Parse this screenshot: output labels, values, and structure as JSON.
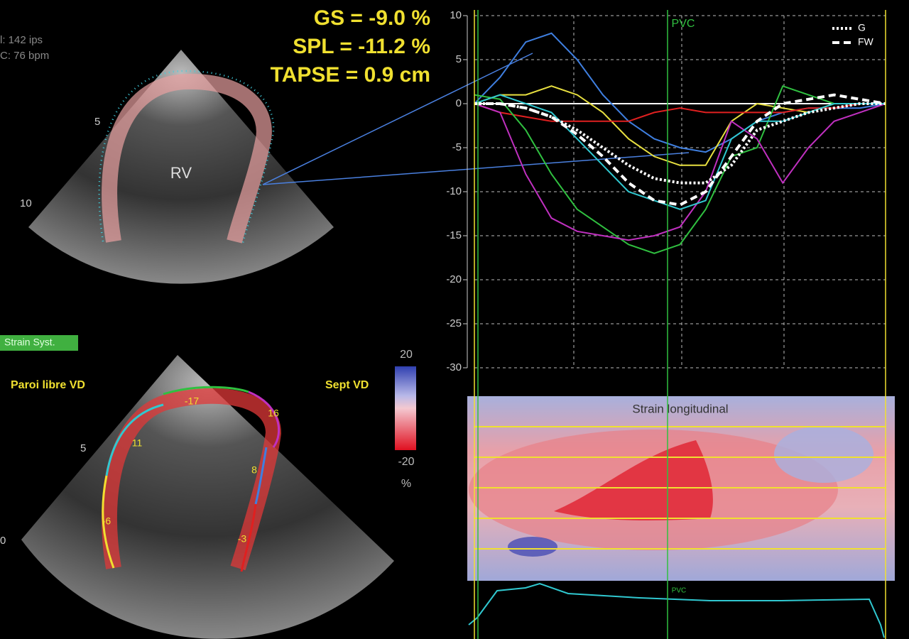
{
  "header": {
    "frame_rate": "l: 142 ips",
    "heart_rate": "C: 76 bpm"
  },
  "measurements": [
    "GS = -9.0 %",
    "SPL = -11.2 %",
    "TAPSE = 0.9 cm"
  ],
  "top_image": {
    "label": "RV",
    "depth_marks": [
      "5",
      "10"
    ]
  },
  "bottom_image": {
    "mode": "Strain Syst.",
    "left_wall": "Paroi libre VD",
    "right_wall": "Sept VD",
    "depth_marks": [
      "5",
      "0"
    ],
    "segments": [
      "-17",
      "16",
      "11",
      "8",
      "-6",
      "-3"
    ]
  },
  "colorbar": {
    "max": "20",
    "min": "-20",
    "unit": "%"
  },
  "heatmap": {
    "title": "Strain longitudinal",
    "marker": "PVC"
  },
  "chart_data": {
    "type": "line",
    "annotation": "PVC",
    "categories": [
      null,
      null,
      null,
      null,
      null,
      null,
      null,
      null,
      null,
      null,
      null,
      null,
      null,
      null,
      null,
      null,
      null
    ],
    "ylim": [
      -30,
      10
    ],
    "yticks": [
      -30,
      -25,
      -20,
      -15,
      -10,
      -5,
      0,
      5,
      10
    ],
    "grid": true,
    "legend": "top-right",
    "series": [
      {
        "color": "#3f7fe0",
        "values": [
          0,
          3,
          7,
          8,
          5,
          1,
          -2,
          -4,
          -5,
          -5.5,
          -4,
          -2,
          -1,
          -0.5,
          -0.5,
          -0.5,
          0
        ]
      },
      {
        "color": "#e8e040",
        "values": [
          0,
          1,
          1,
          2,
          1,
          -1,
          -4,
          -6,
          -7,
          -7,
          -2,
          0,
          -0.5,
          -1,
          0,
          0,
          0
        ]
      },
      {
        "color": "#e02020",
        "values": [
          0,
          -1,
          -1.5,
          -2,
          -2,
          -2,
          -2,
          -1,
          -0.5,
          -1,
          -1,
          -1,
          -1,
          -0.5,
          -0.5,
          0,
          0
        ]
      },
      {
        "color": "#30c040",
        "values": [
          1,
          0.5,
          -3,
          -8,
          -12,
          -14,
          -16,
          -17,
          -16,
          -12,
          -6,
          -5,
          2,
          1,
          0,
          0,
          0
        ]
      },
      {
        "color": "#c030c0",
        "values": [
          0,
          -1,
          -8,
          -13,
          -14.5,
          -15,
          -15.5,
          -15,
          -14,
          -10,
          -2,
          -4,
          -9,
          -5,
          -2,
          -1,
          0
        ]
      },
      {
        "color": "#30c8d0",
        "values": [
          0,
          1,
          0,
          -1,
          -4,
          -7,
          -10,
          -11,
          -12,
          -11,
          -4,
          -2,
          -2,
          -1,
          0,
          0,
          0
        ]
      },
      {
        "name": "G",
        "color": "#ffffff",
        "style": "dotted",
        "values": [
          0,
          0,
          -0.5,
          -1.5,
          -3,
          -5,
          -7,
          -8.5,
          -9,
          -9,
          -7,
          -3,
          -2,
          -1,
          -0.5,
          0,
          0
        ]
      },
      {
        "name": "FW",
        "color": "#ffffff",
        "style": "dashed",
        "values": [
          0,
          0,
          -0.5,
          -1.5,
          -3.5,
          -6,
          -9,
          -11,
          -11.5,
          -10,
          -6,
          -2,
          0,
          0.5,
          1,
          0.5,
          0
        ]
      }
    ]
  }
}
